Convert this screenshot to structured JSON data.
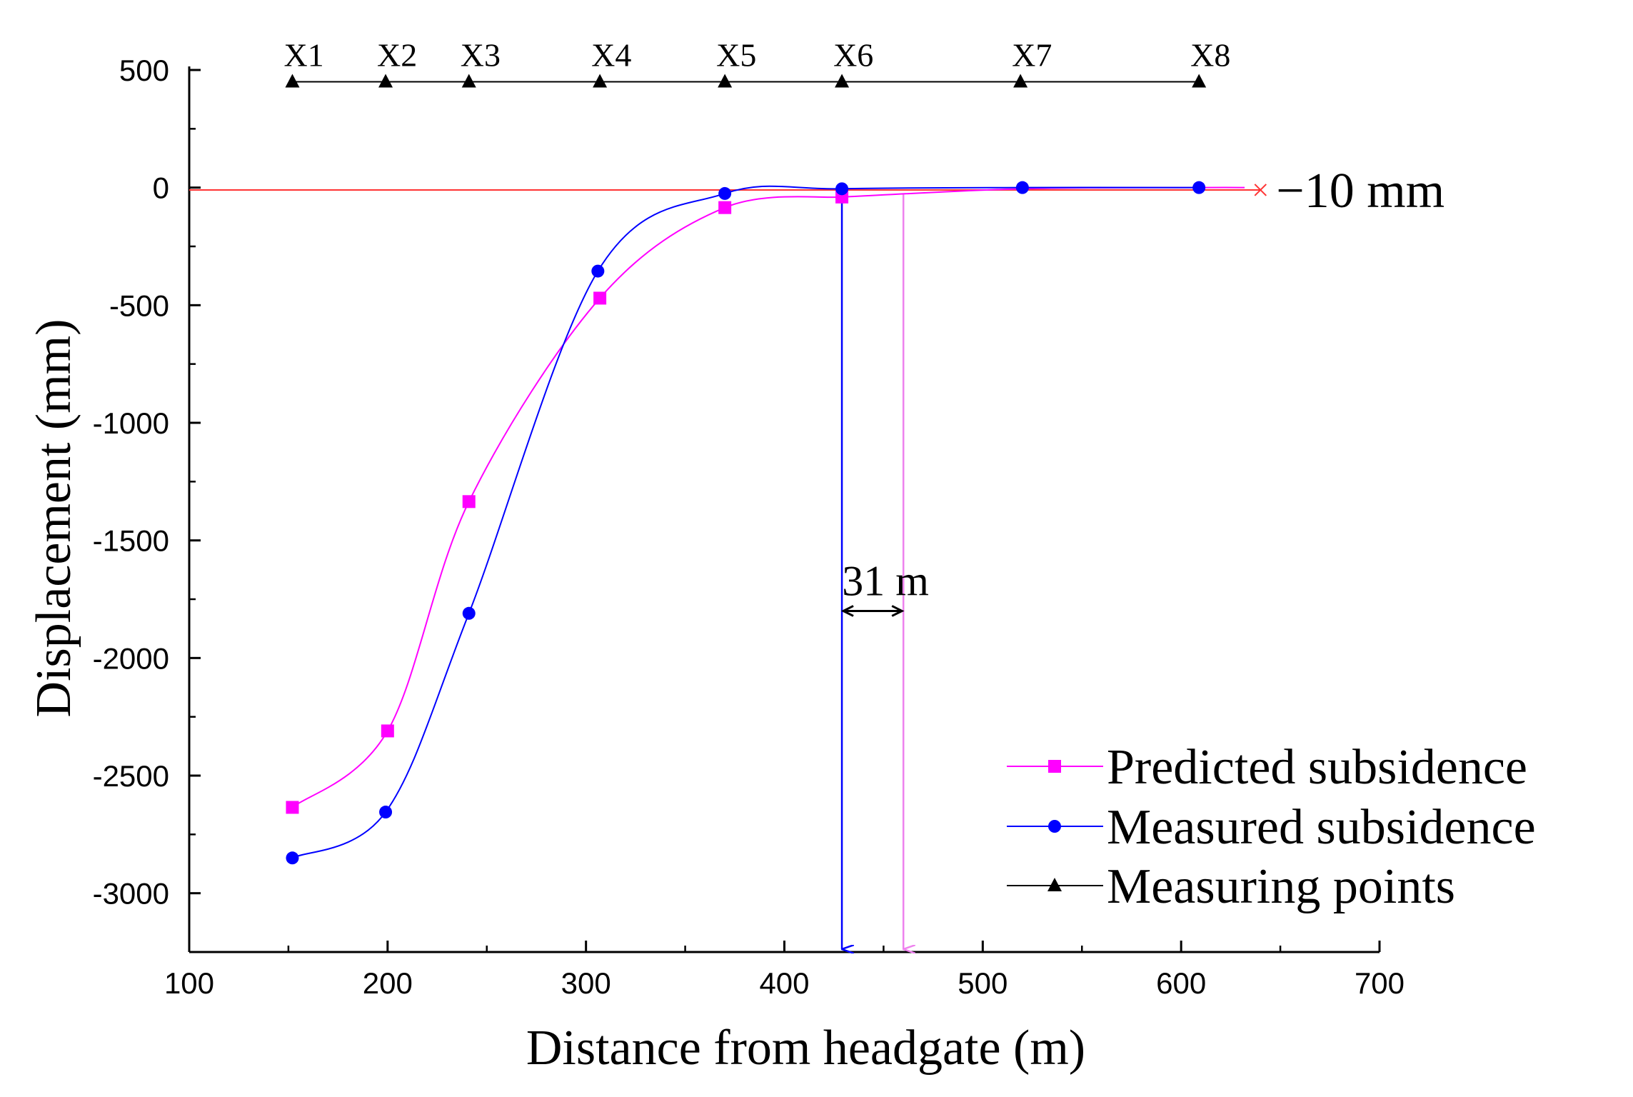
{
  "chart_data": {
    "type": "line",
    "title": "",
    "xlabel": "Distance from headgate (m)",
    "ylabel": "Displacement (mm)",
    "xlim": [
      100,
      700
    ],
    "ylim": [
      -3250,
      500
    ],
    "x_ticks": [
      100,
      200,
      300,
      400,
      500,
      600,
      700
    ],
    "y_ticks": [
      500,
      0,
      -500,
      -1000,
      -1500,
      -2000,
      -2500,
      -3000
    ],
    "x_tick_labels": [
      "100",
      "200",
      "300",
      "400",
      "500",
      "600",
      "700"
    ],
    "y_tick_labels": [
      "500",
      "0",
      "-500",
      "-1000",
      "-1500",
      "-2000",
      "-2500",
      "-3000"
    ],
    "series": [
      {
        "name": "Predicted subsidence",
        "color": "#ff00ff",
        "marker": "square",
        "x": [
          152,
          200,
          241,
          307,
          370,
          429
        ],
        "y": [
          -2635,
          -2310,
          -1335,
          -470,
          -85,
          -40
        ]
      },
      {
        "name": "Measured subsidence",
        "color": "#0000ff",
        "marker": "circle",
        "x": [
          152,
          199,
          241,
          306,
          370,
          429,
          520,
          609
        ],
        "y": [
          -2850,
          -2655,
          -1810,
          -355,
          -25,
          -5,
          0,
          0
        ]
      },
      {
        "name": "Measuring points",
        "color": "#000000",
        "marker": "triangle",
        "labels": [
          "X1",
          "X2",
          "X3",
          "X4",
          "X5",
          "X6",
          "X7",
          "X8"
        ],
        "x": [
          152,
          199,
          241,
          307,
          370,
          429,
          519,
          609
        ],
        "y": [
          450,
          450,
          450,
          450,
          450,
          450,
          450,
          450
        ]
      }
    ],
    "reference_line": {
      "y": -10,
      "color": "#ff3333",
      "label": "−10 mm"
    },
    "vertical_lines": [
      {
        "x": 429,
        "color": "#0000ff"
      },
      {
        "x": 460,
        "color": "#ee82ee"
      }
    ],
    "gap_annotation": {
      "from_x": 429,
      "to_x": 460,
      "y": -1800,
      "label": "31 m"
    },
    "legend_position": "bottom-right"
  }
}
